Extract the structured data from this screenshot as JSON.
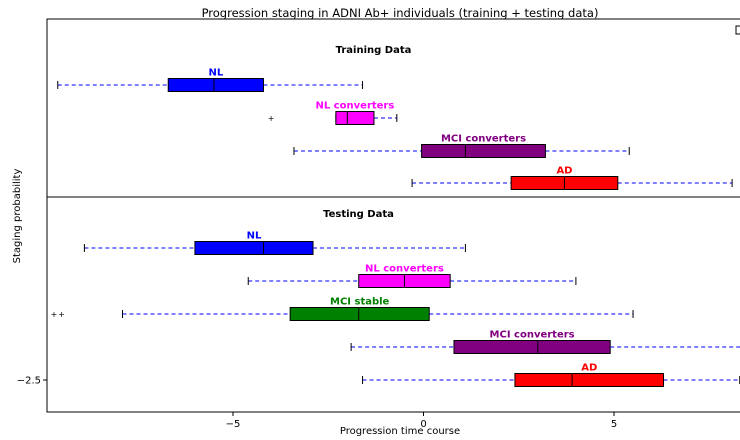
{
  "chart_data": {
    "type": "boxplot",
    "title": "Progression staging in ADNI Ab+ individuals (training + testing data)",
    "xlabel": "Progression time course",
    "ylabel": "Staging probability",
    "xlim": [
      -9.8,
      8.4
    ],
    "x_ticks": [
      -5,
      0,
      5
    ],
    "x_tick_labels": [
      "−5",
      "0",
      "5"
    ],
    "y_tick_labels": [
      "−2.5"
    ],
    "whisker_style": "dashed",
    "panels": [
      {
        "title": "Training Data",
        "groups": [
          {
            "label": "NL",
            "color": "#0000ff",
            "whisker_low": -9.6,
            "q1": -6.7,
            "median": -5.5,
            "q3": -4.2,
            "whisker_high": -1.6,
            "outliers": []
          },
          {
            "label": "NL converters",
            "color": "#ff00ff",
            "whisker_low": -2.3,
            "q1": -2.3,
            "median": -2.0,
            "q3": -1.3,
            "whisker_high": -0.7,
            "outliers": [
              -4.0
            ]
          },
          {
            "label": "MCI converters",
            "color": "#800080",
            "whisker_low": -3.4,
            "q1": -0.05,
            "median": 1.1,
            "q3": 3.2,
            "whisker_high": 5.4,
            "outliers": []
          },
          {
            "label": "AD",
            "color": "#ff0000",
            "whisker_low": -0.3,
            "q1": 2.3,
            "median": 3.7,
            "q3": 5.1,
            "whisker_high": 8.1,
            "outliers": []
          }
        ]
      },
      {
        "title": "Testing Data",
        "groups": [
          {
            "label": "NL",
            "color": "#0000ff",
            "whisker_low": -8.9,
            "q1": -6.0,
            "median": -4.2,
            "q3": -2.9,
            "whisker_high": 1.1,
            "outliers": []
          },
          {
            "label": "NL converters",
            "color": "#ff00ff",
            "whisker_low": -4.6,
            "q1": -1.7,
            "median": -0.5,
            "q3": 0.7,
            "whisker_high": 4.0,
            "outliers": []
          },
          {
            "label": "MCI stable",
            "color": "#008000",
            "whisker_low": -7.9,
            "q1": -3.5,
            "median": -1.7,
            "q3": 0.15,
            "whisker_high": 5.5,
            "outliers": [
              -9.7,
              -9.5
            ]
          },
          {
            "label": "MCI converters",
            "color": "#800080",
            "whisker_low": -1.9,
            "q1": 0.8,
            "median": 3.0,
            "q3": 4.9,
            "whisker_high": 8.4,
            "outliers": []
          },
          {
            "label": "AD",
            "color": "#ff0000",
            "whisker_low": -1.6,
            "q1": 2.4,
            "median": 3.9,
            "q3": 6.3,
            "whisker_high": 8.3,
            "outliers": []
          }
        ]
      }
    ]
  }
}
